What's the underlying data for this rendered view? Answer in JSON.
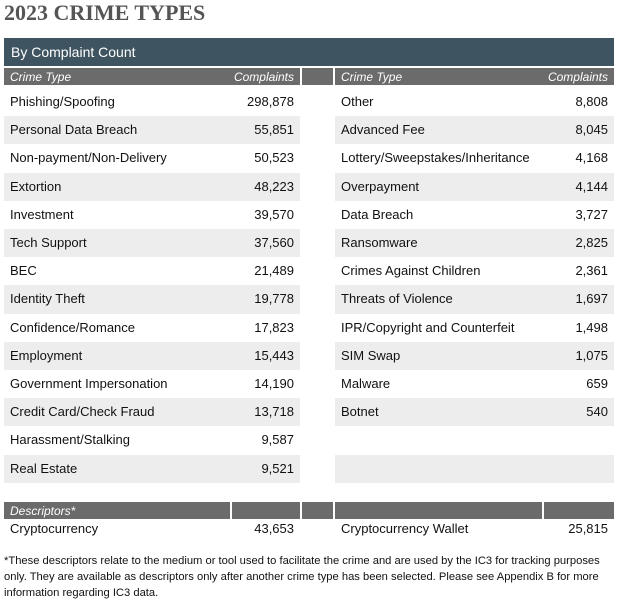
{
  "title": "2023 CRIME TYPES",
  "section": "By Complaint Count",
  "left_header": [
    "Crime Type",
    "Complaints"
  ],
  "right_header": [
    "Crime Type",
    "Complaints"
  ],
  "left_rows": [
    [
      "Phishing/Spoofing",
      "298,878"
    ],
    [
      "Personal Data Breach",
      "55,851"
    ],
    [
      "Non-payment/Non-Delivery",
      "50,523"
    ],
    [
      "Extortion",
      "48,223"
    ],
    [
      "Investment",
      "39,570"
    ],
    [
      "Tech Support",
      "37,560"
    ],
    [
      "BEC",
      "21,489"
    ],
    [
      "Identity Theft",
      "19,778"
    ],
    [
      "Confidence/Romance",
      "17,823"
    ],
    [
      "Employment",
      "15,443"
    ],
    [
      "Government Impersonation",
      "14,190"
    ],
    [
      "Credit Card/Check Fraud",
      "13,718"
    ],
    [
      "Harassment/Stalking",
      "9,587"
    ],
    [
      "Real Estate",
      "9,521"
    ]
  ],
  "right_rows": [
    [
      "Other",
      "8,808"
    ],
    [
      "Advanced Fee",
      "8,045"
    ],
    [
      "Lottery/Sweepstakes/Inheritance",
      "4,168"
    ],
    [
      "Overpayment",
      "4,144"
    ],
    [
      "Data Breach",
      "3,727"
    ],
    [
      "Ransomware",
      "2,825"
    ],
    [
      "Crimes Against Children",
      "2,361"
    ],
    [
      "Threats of Violence",
      "1,697"
    ],
    [
      "IPR/Copyright and Counterfeit",
      "1,498"
    ],
    [
      "SIM Swap",
      "1,075"
    ],
    [
      "Malware",
      "659"
    ],
    [
      "Botnet",
      "540"
    ]
  ],
  "descriptors": {
    "header": "Descriptors*",
    "rows": [
      [
        "Cryptocurrency",
        "43,653"
      ],
      [
        "Cryptocurrency Wallet",
        "25,815"
      ]
    ]
  },
  "footnote": "*These descriptors relate to the medium or tool used to facilitate the crime and are used by the IC3 for tracking purposes only. They are available as descriptors only after another crime type has been selected. Please see Appendix B for more information regarding IC3 data."
}
